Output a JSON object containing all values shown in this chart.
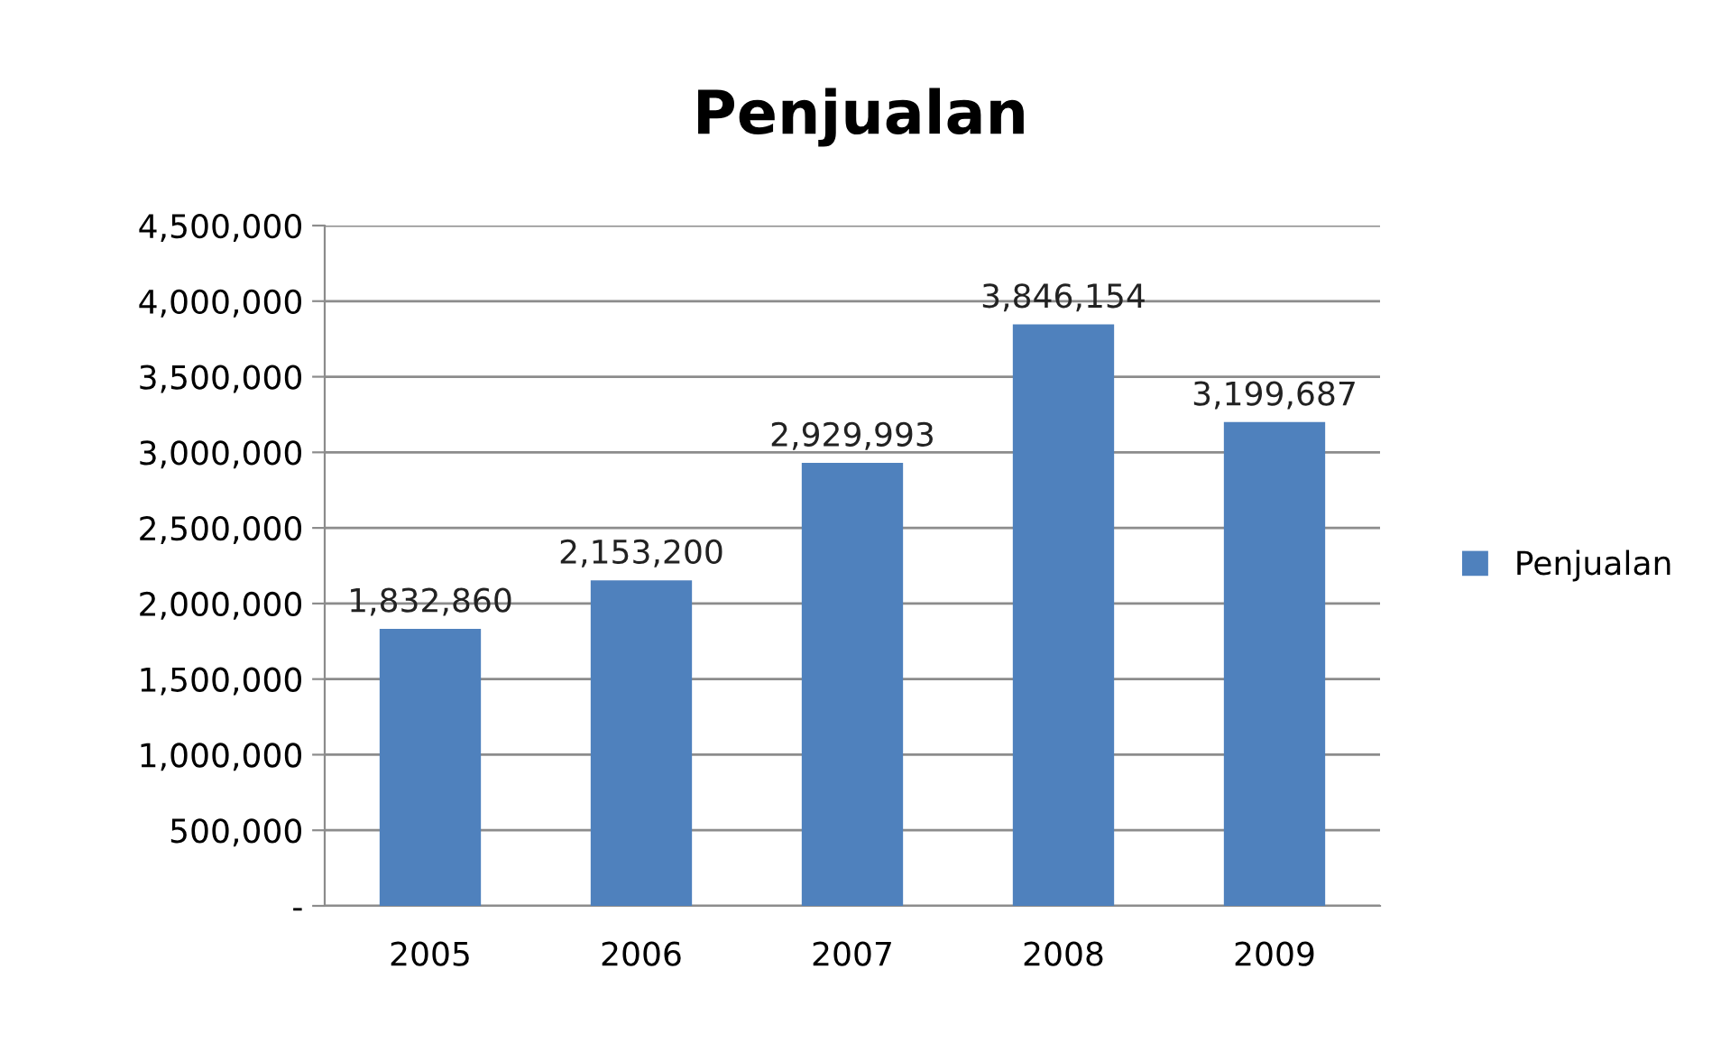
{
  "chart_data": {
    "type": "bar",
    "title": "Penjualan",
    "categories": [
      "2005",
      "2006",
      "2007",
      "2008",
      "2009"
    ],
    "series": [
      {
        "name": "Penjualan",
        "color": "#4f81bd",
        "values": [
          1832860,
          2153200,
          2929993,
          3846154,
          3199687
        ],
        "value_labels": [
          "1,832,860",
          "2,153,200",
          "2,929,993",
          "3,846,154",
          "3,199,687"
        ]
      }
    ],
    "ylim": [
      0,
      4500000
    ],
    "yticks": [
      {
        "value": 0,
        "label": "-"
      },
      {
        "value": 500000,
        "label": "500,000"
      },
      {
        "value": 1000000,
        "label": "1,000,000"
      },
      {
        "value": 1500000,
        "label": "1,500,000"
      },
      {
        "value": 2000000,
        "label": "2,000,000"
      },
      {
        "value": 2500000,
        "label": "2,500,000"
      },
      {
        "value": 3000000,
        "label": "3,000,000"
      },
      {
        "value": 3500000,
        "label": "3,500,000"
      },
      {
        "value": 4000000,
        "label": "4,000,000"
      },
      {
        "value": 4500000,
        "label": "4,500,000"
      }
    ],
    "grid": "y",
    "legend": "right"
  }
}
